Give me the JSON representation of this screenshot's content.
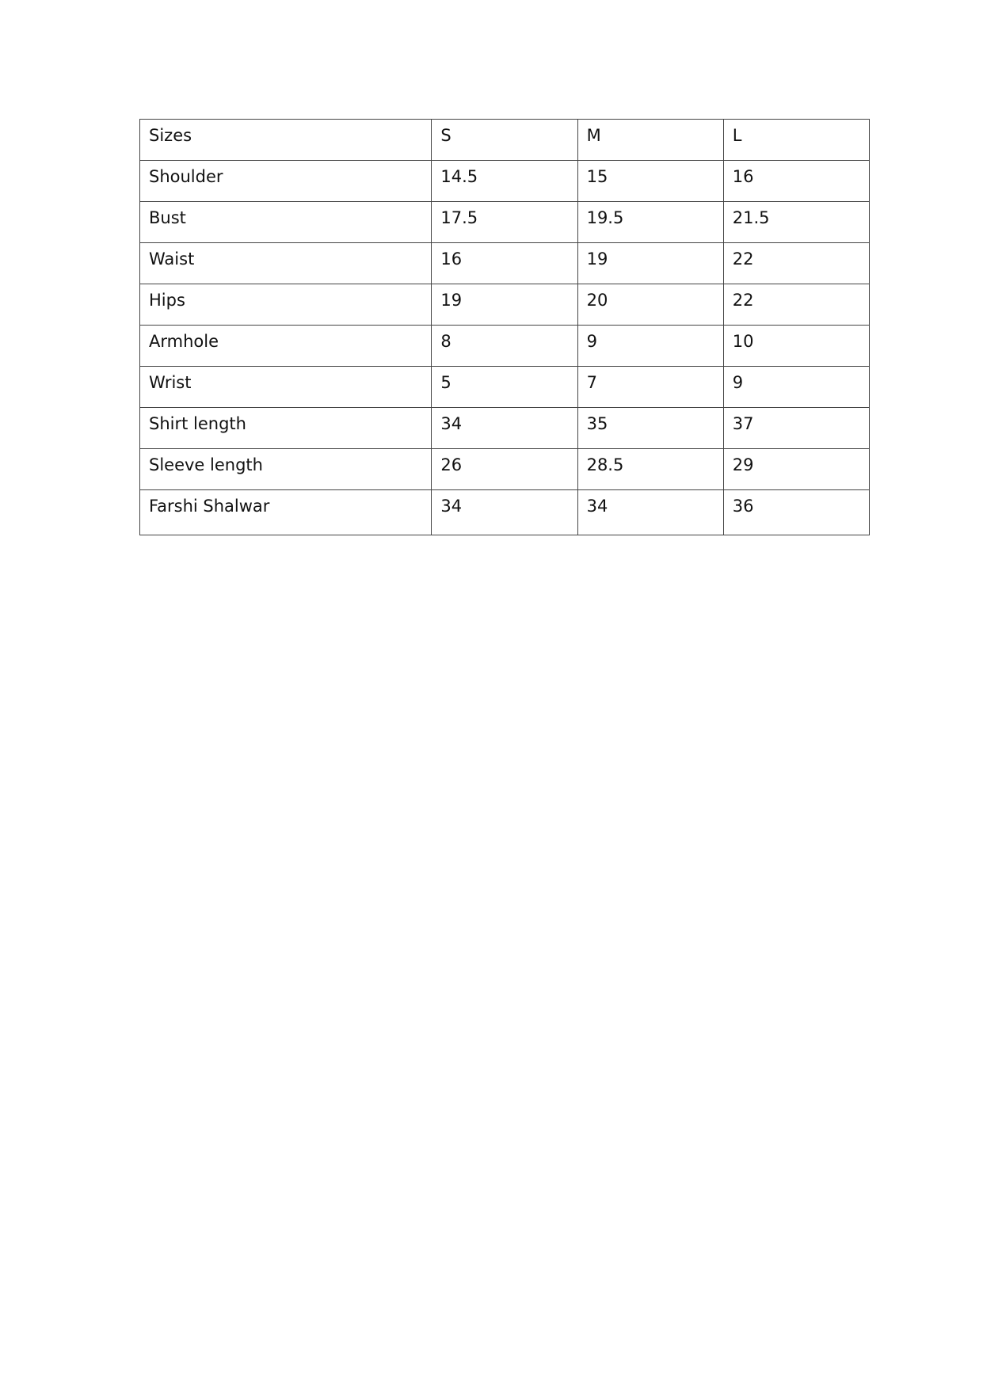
{
  "table": {
    "header": [
      "Sizes",
      "S",
      "M",
      "L"
    ],
    "rows": [
      [
        "Shoulder",
        "14.5",
        "15",
        "16"
      ],
      [
        "Bust",
        "17.5",
        "19.5",
        "21.5"
      ],
      [
        "Waist",
        "16",
        "19",
        "22"
      ],
      [
        "Hips",
        "19",
        "20",
        "22"
      ],
      [
        "Armhole",
        "8",
        "9",
        "10"
      ],
      [
        "Wrist",
        "5",
        "7",
        "9"
      ],
      [
        "Shirt length",
        "34",
        "35",
        "37"
      ],
      [
        "Sleeve length",
        "26",
        "28.5",
        "29"
      ],
      [
        "Farshi Shalwar",
        "34",
        "34",
        "36"
      ]
    ]
  }
}
